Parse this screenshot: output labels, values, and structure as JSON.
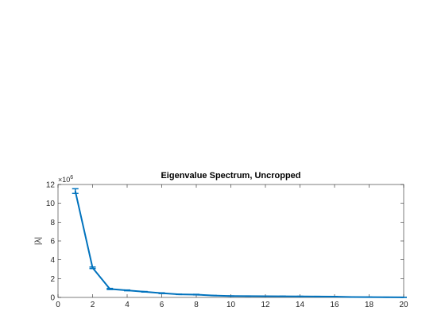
{
  "chart_data": {
    "type": "line",
    "title": "Eigenvalue Spectrum, Uncropped",
    "xlabel": "",
    "ylabel": "|λ|",
    "y_multiplier": "×10",
    "y_multiplier_exponent": "6",
    "xlim": [
      0,
      20
    ],
    "ylim": [
      0,
      12000000
    ],
    "x_ticks": [
      0,
      2,
      4,
      6,
      8,
      10,
      12,
      14,
      16,
      18,
      20
    ],
    "y_ticks": [
      0,
      2000000,
      4000000,
      6000000,
      8000000,
      10000000,
      12000000
    ],
    "x_tick_labels": [
      "0",
      "2",
      "4",
      "6",
      "8",
      "10",
      "12",
      "14",
      "16",
      "18",
      "20"
    ],
    "y_tick_labels": [
      "0",
      "2",
      "4",
      "6",
      "8",
      "10",
      "12"
    ],
    "grid": false,
    "legend": "none",
    "series": [
      {
        "color": "#0072BD",
        "x": [
          1,
          2,
          3,
          4,
          5,
          6,
          7,
          8,
          9,
          10,
          11,
          12,
          13,
          14,
          15,
          16,
          17,
          18,
          19,
          20
        ],
        "y": [
          11300000,
          3150000,
          900000,
          750000,
          600000,
          450000,
          330000,
          300000,
          200000,
          150000,
          140000,
          130000,
          120000,
          110000,
          100000,
          80000,
          40000,
          30000,
          20000,
          10000
        ],
        "err": [
          250000,
          80000,
          60000,
          40000,
          30000,
          40000,
          20000,
          30000,
          15000,
          10000,
          10000,
          10000,
          10000,
          10000,
          10000,
          10000,
          5000,
          5000,
          5000,
          5000
        ]
      }
    ]
  }
}
